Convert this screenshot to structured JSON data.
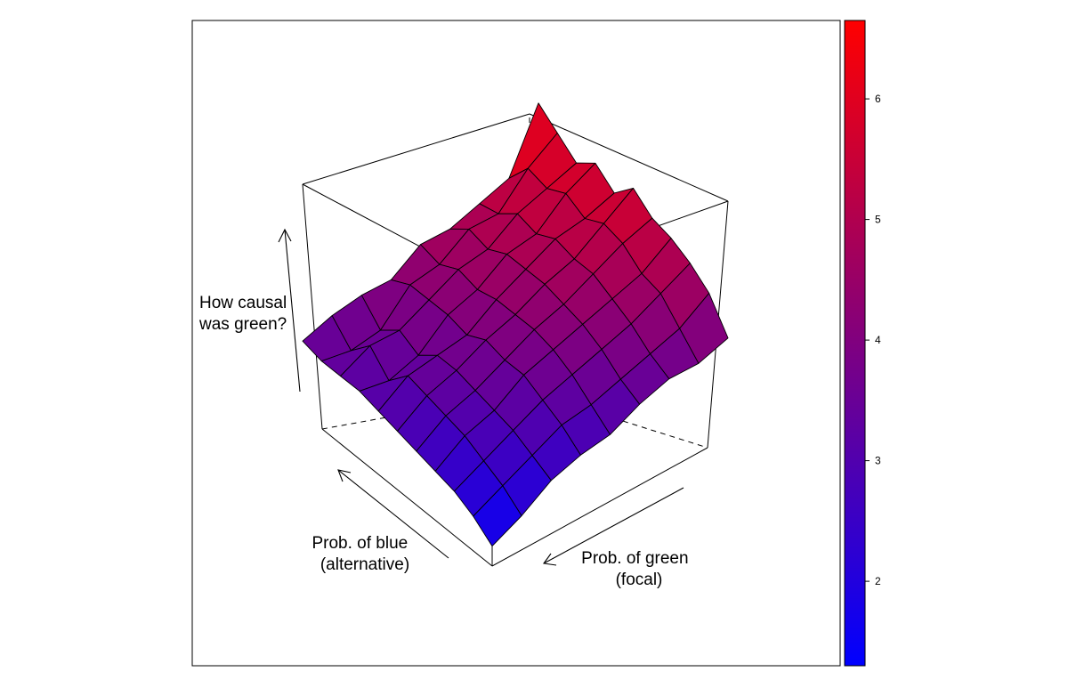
{
  "chart_data": {
    "type": "surface",
    "title": "",
    "axes": {
      "x_label_lines": [
        "Prob. of green",
        "(focal)"
      ],
      "y_label_lines": [
        "Prob. of blue",
        "(alternative)"
      ],
      "z_label_lines": [
        "How causal",
        "was green?"
      ]
    },
    "colorbar": {
      "range": [
        1.3,
        6.65
      ],
      "ticks": [
        2,
        3,
        4,
        5,
        6
      ],
      "low_color": "#0000ff",
      "high_color": "#ff0000"
    },
    "grid_note": "rows run from the low-blue (front) edge to the high-blue (back) edge; columns run from high-green (left) to low-green (right)",
    "z": [
      [
        1.4,
        1.8,
        2.1,
        2.3,
        2.5,
        2.7,
        2.9,
        3.1,
        3.2,
        3.3,
        3.5
      ],
      [
        1.8,
        2.2,
        2.5,
        2.8,
        3.0,
        3.2,
        3.4,
        3.1,
        3.6,
        3.3,
        3.8
      ],
      [
        2.3,
        2.6,
        2.9,
        3.1,
        3.3,
        3.5,
        3.6,
        3.4,
        3.7,
        3.5,
        4.0
      ],
      [
        2.6,
        3.0,
        3.3,
        3.6,
        3.7,
        3.9,
        3.8,
        4.0,
        4.1,
        4.2,
        4.1
      ],
      [
        2.8,
        3.2,
        3.6,
        3.9,
        4.1,
        4.2,
        4.3,
        4.3,
        4.5,
        4.4,
        4.6
      ],
      [
        3.2,
        3.5,
        3.9,
        4.2,
        4.4,
        4.6,
        4.7,
        4.8,
        4.7,
        4.9,
        4.7
      ],
      [
        3.5,
        3.8,
        4.2,
        4.5,
        4.8,
        4.9,
        5.1,
        5.0,
        5.2,
        5.0,
        5.0
      ],
      [
        3.6,
        4.1,
        4.6,
        4.8,
        5.2,
        5.4,
        5.3,
        5.6,
        5.5,
        5.7,
        5.3
      ],
      [
        3.9,
        4.6,
        5.0,
        5.3,
        5.5,
        5.9,
        5.6,
        6.0,
        5.8,
        6.2,
        6.6
      ]
    ]
  }
}
